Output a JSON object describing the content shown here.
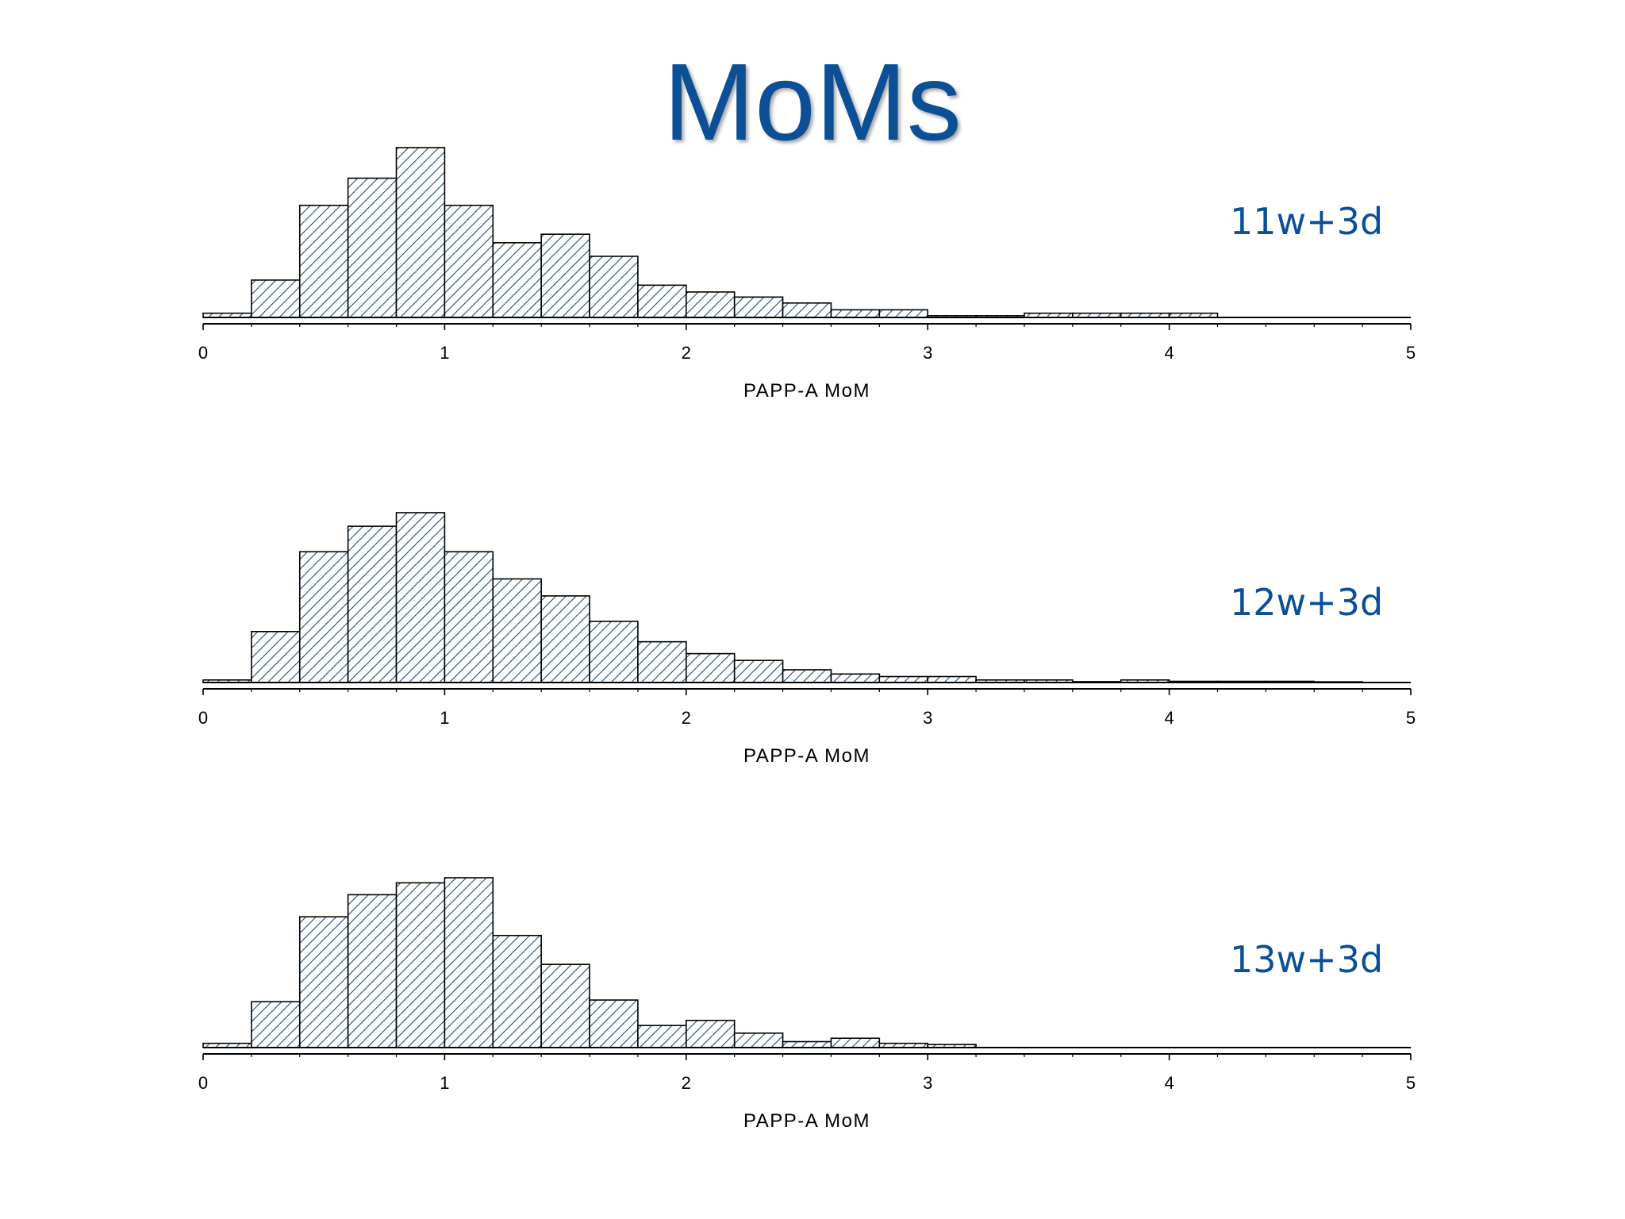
{
  "title": "MoMs",
  "colors": {
    "title": "#0b4f96",
    "bar_hatch": "#1f4e79",
    "panel_label": "#0b4f96",
    "axis": "#000000"
  },
  "chart_data": [
    {
      "type": "bar",
      "label": "11w+3d",
      "xlabel": "PAPP-A MoM",
      "xlim": [
        0,
        5
      ],
      "xticks": [
        0,
        1,
        2,
        3,
        4,
        5
      ],
      "bin_width": 0.2,
      "bin_starts": [
        0,
        0.2,
        0.4,
        0.6,
        0.8,
        1.0,
        1.2,
        1.4,
        1.6,
        1.8,
        2.0,
        2.2,
        2.4,
        2.6,
        2.8,
        3.0,
        3.2,
        3.4,
        3.6,
        3.8,
        4.0
      ],
      "values": [
        2.5,
        22,
        66,
        82,
        100,
        66,
        44,
        49,
        36,
        19,
        15,
        12,
        8.5,
        4.5,
        4.5,
        1,
        1,
        2.5,
        2.5,
        2.5,
        2.5
      ],
      "grid": false
    },
    {
      "type": "bar",
      "label": "12w+3d",
      "xlabel": "PAPP-A MoM",
      "xlim": [
        0,
        5
      ],
      "xticks": [
        0,
        1,
        2,
        3,
        4,
        5
      ],
      "bin_width": 0.2,
      "bin_starts": [
        0,
        0.2,
        0.4,
        0.6,
        0.8,
        1.0,
        1.2,
        1.4,
        1.6,
        1.8,
        2.0,
        2.2,
        2.4,
        2.6,
        2.8,
        3.0,
        3.2,
        3.4,
        3.6,
        3.8,
        4.0,
        4.2,
        4.4,
        4.6
      ],
      "values": [
        1.5,
        30,
        77,
        92,
        100,
        77,
        61,
        51,
        36,
        24,
        17,
        13,
        7.5,
        5,
        3.5,
        3.5,
        1.5,
        1.5,
        0.5,
        1.5,
        0.7,
        0.7,
        0.7,
        0.4
      ],
      "grid": false
    },
    {
      "type": "bar",
      "label": "13w+3d",
      "xlabel": "PAPP-A MoM",
      "xlim": [
        0,
        5
      ],
      "xticks": [
        0,
        1,
        2,
        3,
        4,
        5
      ],
      "bin_width": 0.2,
      "bin_starts": [
        0,
        0.2,
        0.4,
        0.6,
        0.8,
        1.0,
        1.2,
        1.4,
        1.6,
        1.8,
        2.0,
        2.2,
        2.4,
        2.6,
        2.8,
        3.0
      ],
      "values": [
        2.5,
        27,
        77,
        90,
        97,
        100,
        66,
        49,
        28,
        13,
        16,
        8.5,
        3.5,
        5.5,
        2.5,
        1.8
      ],
      "grid": false
    }
  ]
}
